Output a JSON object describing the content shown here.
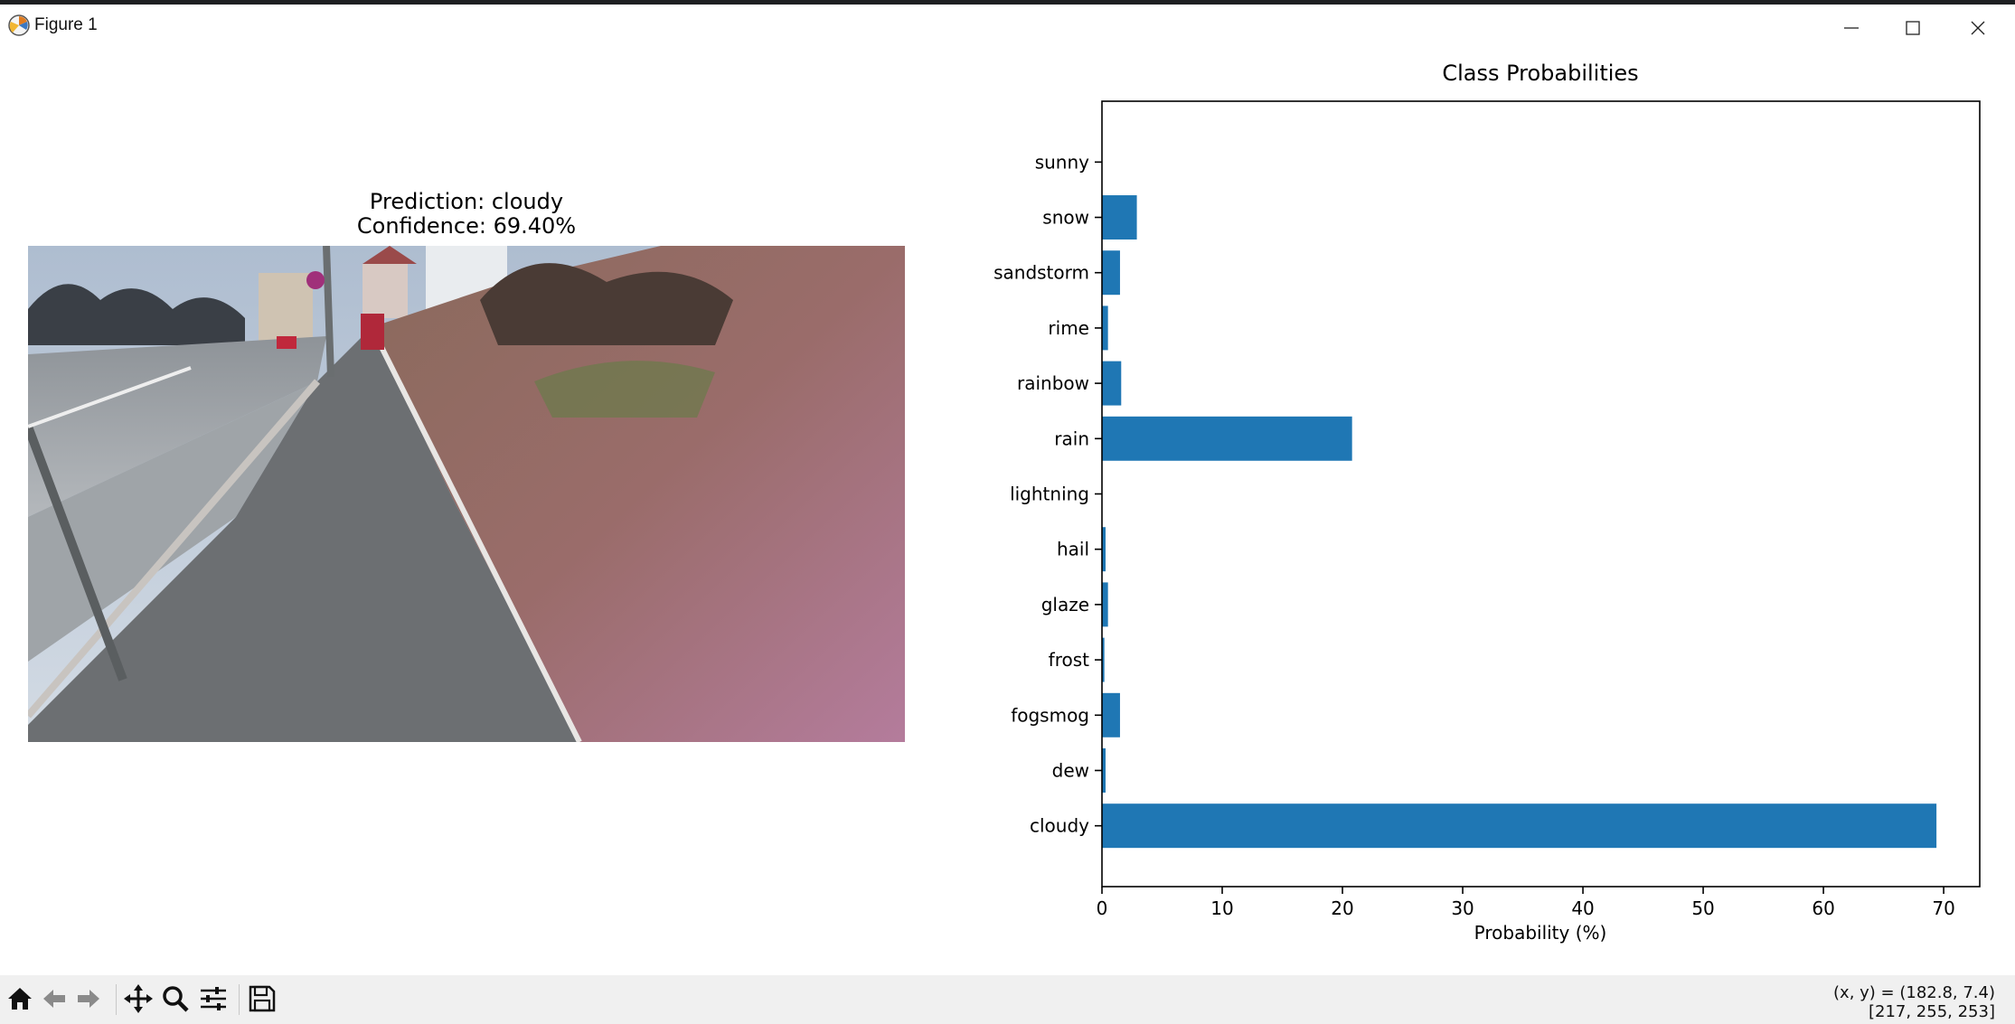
{
  "window": {
    "title": "Figure 1"
  },
  "figure": {
    "left_title_line1": "Prediction: cloudy",
    "left_title_line2": "Confidence: 69.40%",
    "image_alt": "street scene with sidewalk and grassy slope under overcast sky"
  },
  "chart_data": {
    "type": "bar",
    "orientation": "horizontal",
    "title": "Class Probabilities",
    "xlabel": "Probability (%)",
    "ylabel": "",
    "categories": [
      "cloudy",
      "dew",
      "fogsmog",
      "frost",
      "glaze",
      "hail",
      "lightning",
      "rain",
      "rainbow",
      "rime",
      "sandstorm",
      "snow",
      "sunny"
    ],
    "values": [
      69.4,
      0.3,
      1.5,
      0.2,
      0.5,
      0.3,
      0.0,
      20.8,
      1.6,
      0.5,
      1.5,
      2.9,
      0.0
    ],
    "xlim": [
      0,
      73
    ],
    "xticks": [
      0,
      10,
      20,
      30,
      40,
      50,
      60,
      70
    ],
    "bar_color": "#1f77b4",
    "grid": false
  },
  "toolbar": {
    "coords_line1": "(x, y) = (182.8, 7.4)",
    "coords_line2": "[217, 255, 253]",
    "icons": [
      "home-icon",
      "back-arrow-icon",
      "forward-arrow-icon",
      "pan-icon",
      "zoom-icon",
      "configure-subplots-icon",
      "save-icon"
    ]
  }
}
